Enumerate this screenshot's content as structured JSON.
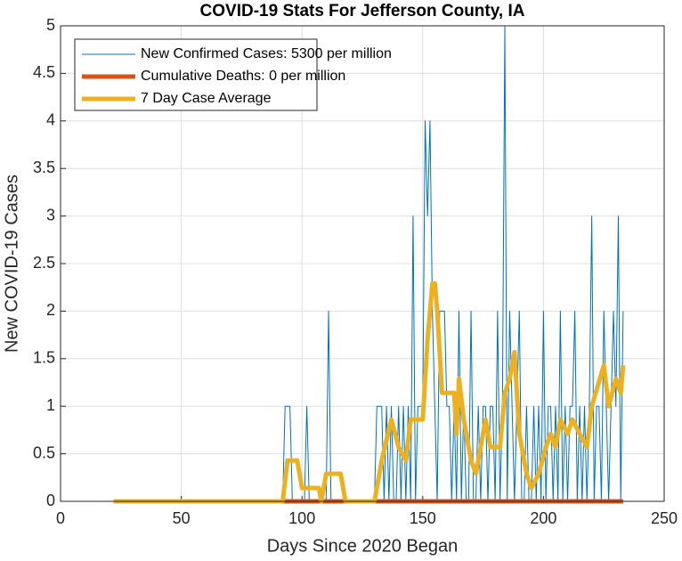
{
  "chart_data": {
    "type": "line",
    "title": "COVID-19 Stats For Jefferson County, IA",
    "xlabel": "Days Since 2020 Began",
    "ylabel": "New COVID-19 Cases",
    "xlim": [
      0,
      250
    ],
    "xticks": [
      0,
      50,
      100,
      150,
      200,
      250
    ],
    "ylim": [
      0,
      5
    ],
    "yticks": [
      0,
      0.5,
      1,
      1.5,
      2,
      2.5,
      3,
      3.5,
      4,
      4.5,
      5
    ],
    "grid": true,
    "legend": "upper left",
    "series": [
      {
        "name": "New Confirmed Cases: 5300 per million",
        "color": "#0072bd",
        "x": [
          22,
          92,
          93,
          94,
          95,
          96,
          97,
          98,
          99,
          100,
          101,
          102,
          103,
          104,
          105,
          106,
          107,
          108,
          109,
          110,
          111,
          112,
          113,
          114,
          115,
          116,
          117,
          118,
          119,
          120,
          121,
          122,
          123,
          124,
          125,
          126,
          127,
          128,
          129,
          130,
          131,
          132,
          133,
          134,
          135,
          136,
          137,
          138,
          139,
          140,
          141,
          142,
          143,
          144,
          145,
          146,
          147,
          148,
          149,
          150,
          151,
          152,
          153,
          154,
          155,
          156,
          157,
          158,
          159,
          160,
          161,
          162,
          163,
          164,
          165,
          166,
          167,
          168,
          169,
          170,
          171,
          172,
          173,
          174,
          175,
          176,
          177,
          178,
          179,
          180,
          181,
          182,
          183,
          184,
          185,
          186,
          187,
          188,
          189,
          190,
          191,
          192,
          193,
          194,
          195,
          196,
          197,
          198,
          199,
          200,
          201,
          202,
          203,
          204,
          205,
          206,
          207,
          208,
          209,
          210,
          211,
          212,
          213,
          214,
          215,
          216,
          217,
          218,
          219,
          220,
          221,
          222,
          223,
          224,
          225,
          226,
          227,
          228,
          229,
          230,
          231,
          232,
          233
        ],
        "values": [
          0,
          0,
          1,
          1,
          1,
          0,
          0,
          0,
          0,
          0,
          0,
          1,
          0,
          0,
          0,
          0,
          0,
          0,
          0,
          0,
          2,
          0,
          0,
          0,
          0,
          0,
          0,
          0,
          0,
          0,
          0,
          0,
          0,
          0,
          0,
          0,
          0,
          0,
          0,
          0,
          1,
          1,
          1,
          0,
          1,
          0,
          1,
          0,
          0,
          1,
          0,
          1,
          0,
          1,
          0,
          3,
          0,
          1,
          1,
          1,
          4,
          3,
          4,
          2,
          1,
          0,
          2,
          2,
          2,
          1,
          1,
          0,
          1,
          0,
          2,
          0,
          1,
          0,
          0,
          2,
          0,
          0,
          1,
          0,
          1,
          1,
          0,
          1,
          1,
          0,
          2,
          0,
          1,
          5,
          0,
          2,
          1,
          0,
          1,
          2,
          0,
          0,
          1,
          0,
          0,
          1,
          0,
          1,
          0,
          2,
          0,
          1,
          1,
          0,
          1,
          0,
          2,
          0,
          1,
          0,
          1,
          1,
          2,
          0,
          1,
          0,
          1,
          0,
          1,
          3,
          0,
          1,
          1,
          0,
          2,
          1,
          0,
          1,
          2,
          1,
          3,
          0,
          2
        ]
      },
      {
        "name": "Cumulative Deaths: 0 per million",
        "color": "#d95319",
        "x": [
          22,
          233
        ],
        "values": [
          0,
          0
        ]
      },
      {
        "name": "7 Day Case Average",
        "color": "#edb120",
        "x": [
          22,
          92,
          94,
          98,
          100,
          107,
          108,
          110,
          116,
          118,
          130,
          133,
          137,
          140,
          143,
          145,
          150,
          152,
          154,
          155,
          156,
          158,
          163,
          164,
          165,
          167,
          170,
          172,
          174,
          176,
          178,
          182,
          184,
          186,
          188,
          190,
          193,
          195,
          198,
          201,
          203,
          205,
          207,
          210,
          212,
          215,
          218,
          220,
          225,
          227,
          230,
          232,
          233
        ],
        "values": [
          0,
          0,
          0.43,
          0.43,
          0.14,
          0.14,
          0,
          0.29,
          0.29,
          0,
          0,
          0.43,
          0.86,
          0.57,
          0.43,
          0.86,
          0.86,
          1.71,
          2.29,
          2.29,
          2,
          1.14,
          1.14,
          0.71,
          1.29,
          0.86,
          0.43,
          0.29,
          0.57,
          0.86,
          0.57,
          0.57,
          1.14,
          1.29,
          1.57,
          0.71,
          0.29,
          0.14,
          0.29,
          0.57,
          0.71,
          0.57,
          0.86,
          0.71,
          0.86,
          0.71,
          0.57,
          1,
          1.43,
          1,
          1.29,
          1.14,
          1.43
        ]
      }
    ]
  }
}
